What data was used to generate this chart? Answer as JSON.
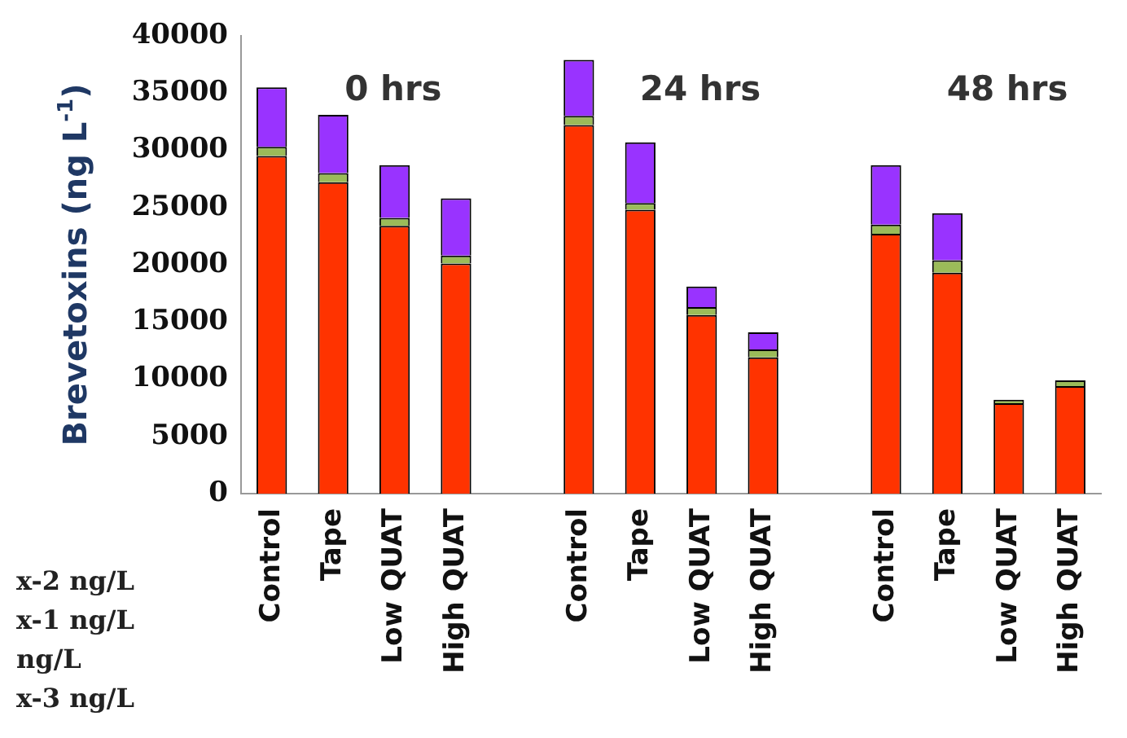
{
  "chart_data": {
    "type": "bar",
    "stacked": true,
    "ylabel": "Brevetoxins (ng L$^{-1}$)",
    "categories": [
      "Control",
      "Tape",
      "Low QUAT",
      "High QUAT",
      null,
      "Control",
      "Tape",
      "Low QUAT",
      "High QUAT",
      null,
      "Control",
      "Tape",
      "Low QUAT",
      "High QUAT"
    ],
    "series": [
      {
        "color": "#ff3300",
        "values": [
          29500,
          27200,
          23400,
          20100,
          null,
          32200,
          24800,
          15600,
          11900,
          null,
          22700,
          19300,
          7900,
          9400
        ]
      },
      {
        "color": "#9bbb59",
        "values": [
          800,
          800,
          700,
          700,
          null,
          800,
          600,
          700,
          700,
          null,
          800,
          1100,
          300,
          500
        ]
      },
      {
        "color": "#9933ff",
        "values": [
          5200,
          5100,
          4600,
          5000,
          null,
          4900,
          5300,
          1800,
          1500,
          null,
          5200,
          4100,
          0,
          0
        ]
      }
    ],
    "ylim": [
      0,
      40000
    ],
    "yticks": [
      0,
      5000,
      10000,
      15000,
      20000,
      25000,
      30000,
      35000,
      40000
    ],
    "grid": false,
    "legend": false,
    "annotations": [
      "0 hrs",
      "24 hrs",
      "48 hrs",
      "x-2 ng/L",
      "x-1 ng/L",
      "ng/L",
      "x-3 ng/L"
    ]
  }
}
